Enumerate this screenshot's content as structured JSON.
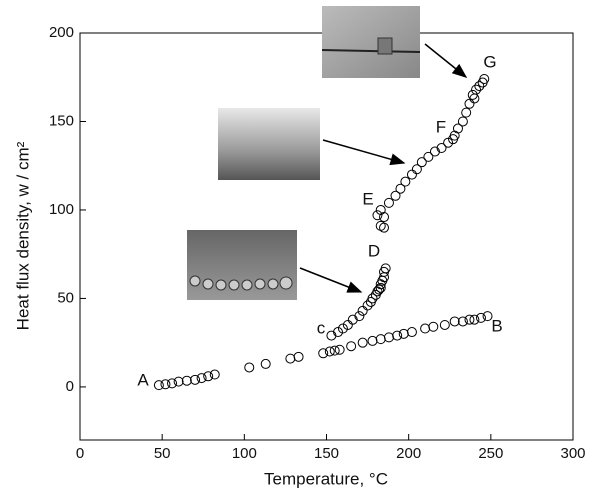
{
  "chart_data": {
    "type": "scatter",
    "xlabel": "Temperature, °C",
    "ylabel": "Heat flux density, w / cm²",
    "xlim": [
      0,
      300
    ],
    "xticks": [
      0,
      50,
      100,
      150,
      200,
      250,
      300
    ],
    "ylim": [
      -30,
      200
    ],
    "yticks": [
      0,
      50,
      100,
      150,
      200
    ],
    "series": [
      {
        "color": "#000000",
        "x": [
          48,
          52,
          56,
          60,
          65,
          70,
          74,
          78,
          82,
          103,
          113,
          128,
          133,
          148,
          152,
          155,
          158,
          165,
          172,
          178,
          183,
          188,
          193,
          197,
          202,
          210,
          215,
          222,
          228,
          233,
          237,
          240,
          244,
          248
        ],
        "values": [
          1,
          1.5,
          2,
          3,
          3.5,
          4,
          5,
          6,
          7,
          11,
          13,
          16,
          17,
          19,
          20,
          20.5,
          21,
          23,
          25,
          26,
          27,
          28,
          29,
          30,
          31,
          33,
          34,
          35,
          37,
          37,
          38,
          38,
          39,
          40
        ]
      },
      {
        "color": "#000000",
        "x": [
          153,
          157,
          160,
          163,
          166,
          170,
          172,
          175,
          177,
          178,
          180,
          181,
          182,
          183,
          183,
          184,
          185,
          185,
          186
        ],
        "values": [
          29,
          31,
          33,
          35,
          38,
          40,
          43,
          46,
          48,
          50,
          52,
          54,
          55,
          56,
          58,
          60,
          62,
          65,
          67
        ]
      },
      {
        "color": "#000000",
        "x": [
          185,
          183,
          181,
          183,
          185,
          188,
          192,
          195,
          198,
          202,
          205,
          208,
          212,
          216,
          220,
          224,
          227,
          228,
          230,
          233,
          235,
          237,
          240,
          239,
          241,
          243,
          245,
          246
        ],
        "values": [
          90,
          91,
          97,
          100,
          96,
          104,
          108,
          112,
          116,
          120,
          123,
          127,
          130,
          133,
          135,
          138,
          140,
          142,
          146,
          150,
          155,
          160,
          163,
          165,
          168,
          170,
          172,
          174
        ]
      }
    ],
    "annotations": [
      "A",
      "B",
      "c",
      "D",
      "E",
      "F",
      "G"
    ]
  }
}
